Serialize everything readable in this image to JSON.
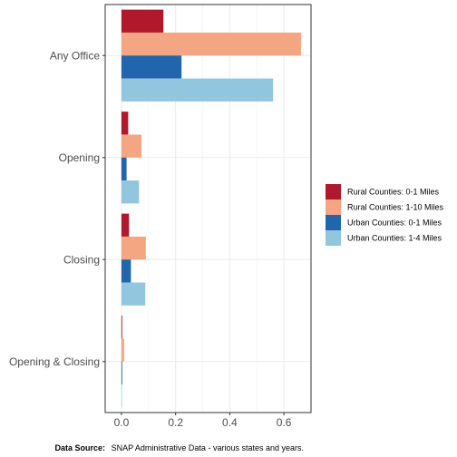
{
  "chart_data": {
    "type": "bar",
    "orientation": "horizontal",
    "categories": [
      "Any Office",
      "Opening",
      "Closing",
      "Opening & Closing"
    ],
    "series": [
      {
        "name": "Rural Counties: 0-1 Miles",
        "color": "#b2182b",
        "values": [
          0.155,
          0.025,
          0.028,
          0.003
        ]
      },
      {
        "name": "Rural Counties: 1-10 Miles",
        "color": "#f4a582",
        "values": [
          0.663,
          0.074,
          0.09,
          0.01
        ]
      },
      {
        "name": "Urban Counties: 0-1 Miles",
        "color": "#2166ac",
        "values": [
          0.222,
          0.019,
          0.035,
          0.003
        ]
      },
      {
        "name": "Urban Counties: 1-4 Miles",
        "color": "#92c5de",
        "values": [
          0.56,
          0.065,
          0.088,
          0.002
        ]
      }
    ],
    "xlim": [
      -0.06,
      0.7
    ],
    "xticks": [
      0.0,
      0.2,
      0.4,
      0.6
    ],
    "xtick_labels": [
      "0.0",
      "0.2",
      "0.4",
      "0.6"
    ],
    "xlabel": "",
    "ylabel": "",
    "title": "",
    "grid": true,
    "legend_position": "right",
    "caption_bold": "Data Source:",
    "caption_text": "SNAP Administrative Data - various states and years."
  }
}
